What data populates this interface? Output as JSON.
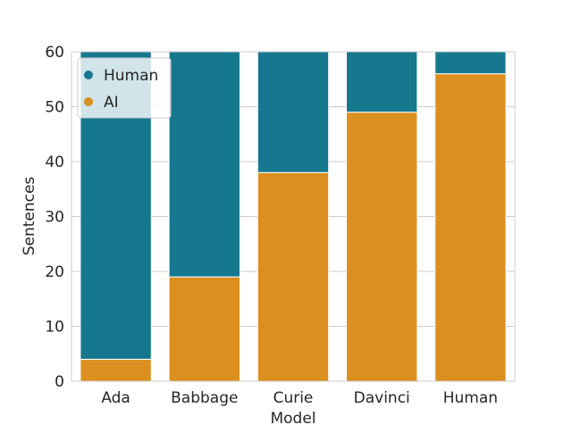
{
  "chart_data": {
    "type": "bar",
    "stacked": true,
    "xlabel": "Model",
    "ylabel": "Sentences",
    "categories": [
      "Ada",
      "Babbage",
      "Curie",
      "Davinci",
      "Human"
    ],
    "ylim": [
      0,
      60
    ],
    "yticks": [
      0,
      10,
      20,
      30,
      40,
      50,
      60
    ],
    "grid": true,
    "legend_position": "top-left",
    "series": [
      {
        "name": "AI",
        "color": "#db8f1e",
        "values": [
          4,
          19,
          38,
          49,
          56
        ]
      },
      {
        "name": "Human",
        "color": "#16788f",
        "values": [
          56,
          41,
          22,
          11,
          4
        ]
      }
    ],
    "legend": [
      {
        "name": "Human",
        "color": "#16788f"
      },
      {
        "name": "AI",
        "color": "#db8f1e"
      }
    ]
  }
}
